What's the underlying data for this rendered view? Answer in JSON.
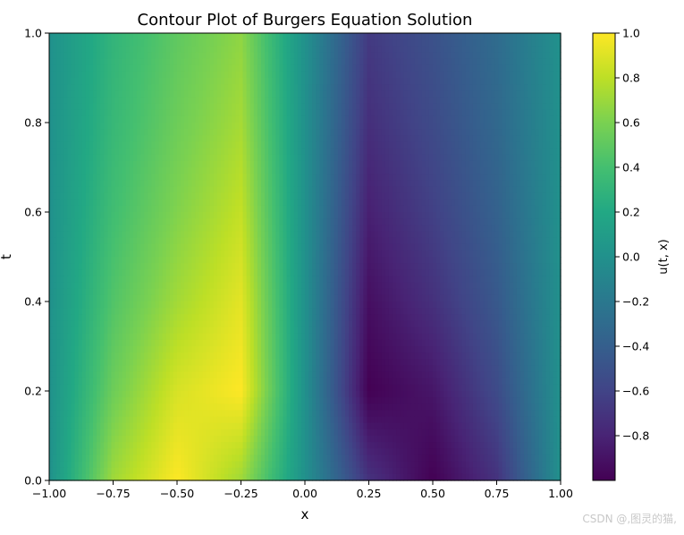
{
  "chart_data": {
    "type": "heatmap",
    "title": "Contour Plot of Burgers Equation Solution",
    "xlabel": "x",
    "ylabel": "t",
    "xlim": [
      -1.0,
      1.0
    ],
    "ylim": [
      0.0,
      1.0
    ],
    "x_ticks": [
      -1.0,
      -0.75,
      -0.5,
      -0.25,
      0.0,
      0.25,
      0.5,
      0.75,
      1.0
    ],
    "x_tick_labels": [
      "−1.00",
      "−0.75",
      "−0.50",
      "−0.25",
      "0.00",
      "0.25",
      "0.50",
      "0.75",
      "1.00"
    ],
    "y_ticks": [
      0.0,
      0.2,
      0.4,
      0.6,
      0.8,
      1.0
    ],
    "y_tick_labels": [
      "0.0",
      "0.2",
      "0.4",
      "0.6",
      "0.8",
      "1.0"
    ],
    "colormap": "viridis",
    "colorbar": {
      "label": "u(t, x)",
      "range": [
        -1.0,
        1.0
      ],
      "ticks": [
        -0.8,
        -0.6,
        -0.4,
        -0.2,
        0.0,
        0.2,
        0.4,
        0.6,
        0.8,
        1.0
      ],
      "tick_labels": [
        "−0.8",
        "−0.6",
        "−0.4",
        "−0.2",
        "0.0",
        "0.2",
        "0.4",
        "0.6",
        "0.8",
        "1.0"
      ]
    },
    "field": {
      "t": [
        0.0,
        0.2,
        0.4,
        0.6,
        0.8,
        1.0
      ],
      "x": [
        -1.0,
        -0.75,
        -0.5,
        -0.25,
        0.0,
        0.25,
        0.5,
        0.75,
        1.0
      ],
      "u": [
        [
          0.0,
          0.71,
          1.0,
          0.71,
          0.0,
          -0.71,
          -1.0,
          -0.71,
          0.0
        ],
        [
          0.0,
          0.55,
          0.88,
          1.0,
          0.0,
          -1.0,
          -0.88,
          -0.55,
          0.0
        ],
        [
          0.0,
          0.45,
          0.72,
          0.92,
          0.0,
          -0.92,
          -0.72,
          -0.45,
          0.0
        ],
        [
          0.0,
          0.38,
          0.62,
          0.82,
          0.0,
          -0.82,
          -0.62,
          -0.38,
          0.0
        ],
        [
          0.0,
          0.33,
          0.55,
          0.73,
          0.0,
          -0.73,
          -0.55,
          -0.33,
          0.0
        ],
        [
          0.0,
          0.3,
          0.5,
          0.66,
          0.0,
          -0.66,
          -0.5,
          -0.3,
          0.0
        ]
      ]
    }
  },
  "watermark": "CSDN @,图灵的猫,"
}
